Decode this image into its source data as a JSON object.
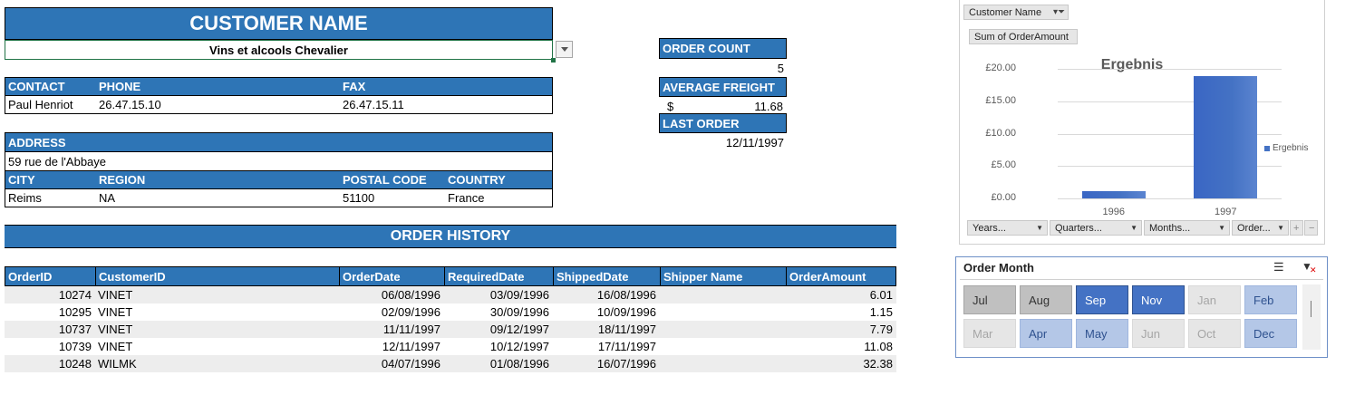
{
  "customer": {
    "title": "CUSTOMER NAME",
    "selected": "Vins et alcools Chevalier"
  },
  "contact": {
    "headers": {
      "contact": "CONTACT",
      "phone": "PHONE",
      "fax": "FAX"
    },
    "name": "Paul Henriot",
    "phone": "26.47.15.10",
    "fax": "26.47.15.11"
  },
  "address": {
    "header": "ADDRESS",
    "street": "59 rue de l'Abbaye",
    "headers": {
      "city": "CITY",
      "region": "REGION",
      "postal": "POSTAL CODE",
      "country": "COUNTRY"
    },
    "city": "Reims",
    "region": "NA",
    "postal": "51100",
    "country": "France"
  },
  "stats": {
    "order_count_label": "ORDER COUNT",
    "order_count": "5",
    "avg_freight_label": "AVERAGE FREIGHT",
    "currency": "$",
    "avg_freight": "11.68",
    "last_order_label": "LAST ORDER",
    "last_order": "12/11/1997"
  },
  "history": {
    "title": "ORDER HISTORY",
    "columns": [
      "OrderID",
      "CustomerID",
      "OrderDate",
      "RequiredDate",
      "ShippedDate",
      "Shipper Name",
      "OrderAmount"
    ],
    "rows": [
      [
        "10274",
        "VINET",
        "06/08/1996",
        "03/09/1996",
        "16/08/1996",
        "",
        "6.01"
      ],
      [
        "10295",
        "VINET",
        "02/09/1996",
        "30/09/1996",
        "10/09/1996",
        "",
        "1.15"
      ],
      [
        "10737",
        "VINET",
        "11/11/1997",
        "09/12/1997",
        "18/11/1997",
        "",
        "7.79"
      ],
      [
        "10739",
        "VINET",
        "12/11/1997",
        "10/12/1997",
        "17/11/1997",
        "",
        "11.08"
      ],
      [
        "10248",
        "WILMK",
        "04/07/1996",
        "01/08/1996",
        "16/07/1996",
        "",
        "32.38"
      ]
    ]
  },
  "pivot_chart": {
    "filter_field": "Customer Name",
    "value_field": "Sum of OrderAmount",
    "axis_fields": [
      "Years...",
      "Quarters...",
      "Months...",
      "Order..."
    ],
    "plus": "+",
    "minus": "−"
  },
  "chart_data": {
    "type": "bar",
    "title": "Ergebnis",
    "categories": [
      "1996",
      "1997"
    ],
    "series": [
      {
        "name": "Ergebnis",
        "values": [
          1.15,
          18.87
        ]
      }
    ],
    "ylim": [
      0,
      20
    ],
    "yticks": [
      "£0.00",
      "£5.00",
      "£10.00",
      "£15.00",
      "£20.00"
    ],
    "grid": true,
    "legend": "right",
    "bar_color": "#4472c4"
  },
  "slicer": {
    "title": "Order Month",
    "buttons": [
      {
        "label": "Jul",
        "state": "unsel-data"
      },
      {
        "label": "Aug",
        "state": "unsel-data"
      },
      {
        "label": "Sep",
        "state": "sel-dark"
      },
      {
        "label": "Nov",
        "state": "sel-dark"
      },
      {
        "label": "Jan",
        "state": "unsel-nodata"
      },
      {
        "label": "Feb",
        "state": "sel-light"
      },
      {
        "label": "Mar",
        "state": "unsel-nodata"
      },
      {
        "label": "Apr",
        "state": "sel-light"
      },
      {
        "label": "May",
        "state": "sel-light"
      },
      {
        "label": "Jun",
        "state": "unsel-nodata"
      },
      {
        "label": "Oct",
        "state": "unsel-nodata"
      },
      {
        "label": "Dec",
        "state": "sel-light"
      }
    ]
  },
  "icons": {
    "multiselect": "multi-select-icon",
    "clearfilter": "clear-filter-icon",
    "dropdown": "dropdown-arrow-icon",
    "filter": "filter-icon"
  }
}
